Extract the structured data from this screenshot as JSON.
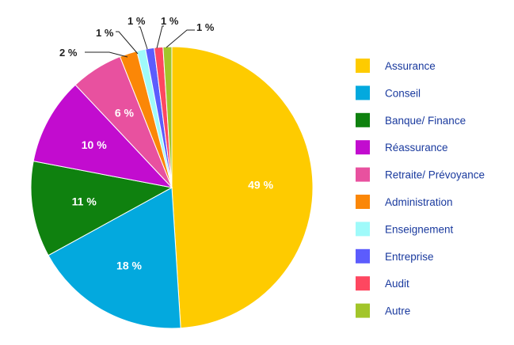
{
  "chart_data": {
    "type": "pie",
    "unit_suffix": " %",
    "categories": [
      "Assurance",
      "Conseil",
      "Banque/ Finance",
      "Réassurance",
      "Retraite/ Prévoyance",
      "Administration",
      "Enseignement",
      "Entreprise",
      "Audit",
      "Autre"
    ],
    "values": [
      49,
      18,
      11,
      10,
      6,
      2,
      1,
      1,
      1,
      1
    ],
    "colors": [
      "#fecb00",
      "#03a9de",
      "#0f810f",
      "#c20ccf",
      "#e8519f",
      "#fb8707",
      "#9ffafa",
      "#5c5cfd",
      "#fe4760",
      "#a2c52a"
    ],
    "labels": [
      "49 %",
      "18 %",
      "11 %",
      "10 %",
      "6 %",
      "2 %",
      "1 %",
      "1 %",
      "1 %",
      "1 %"
    ],
    "legend_position": "right",
    "title": ""
  }
}
